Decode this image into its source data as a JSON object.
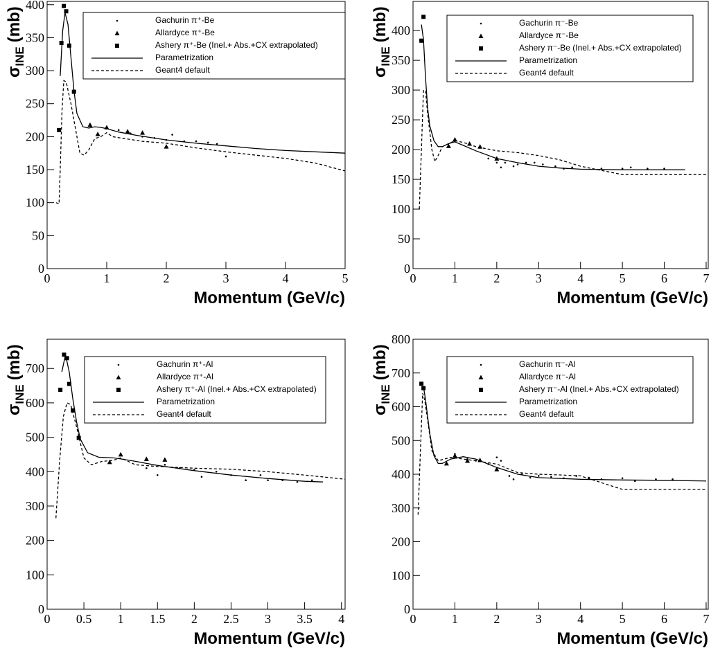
{
  "chart_data": [
    {
      "type": "line",
      "xlabel": "Momentum (GeV/c)",
      "ylabel": {
        "main": "σ",
        "sub": "INE",
        "unit": "(mb)"
      },
      "xlim": [
        0,
        5
      ],
      "ylim": [
        0,
        405
      ],
      "xticks": [
        0,
        1,
        2,
        3,
        4,
        5
      ],
      "yticks": [
        0,
        50,
        100,
        150,
        200,
        250,
        300,
        350,
        400
      ],
      "series": [
        {
          "name": "Gachurin π⁺-Be",
          "color": "#000000",
          "marker": "dot",
          "line": "none",
          "x": [
            1.2,
            1.4,
            1.6,
            1.8,
            2.0,
            2.1,
            2.3,
            2.5,
            2.7,
            2.85,
            3.0
          ],
          "values": [
            210,
            205,
            200,
            198,
            195,
            203,
            193,
            193,
            191,
            189,
            170
          ]
        },
        {
          "name": "Allardyce π⁺-Be",
          "color": "#000000",
          "marker": "triangle",
          "line": "none",
          "x": [
            0.72,
            0.85,
            1.0,
            1.35,
            1.6,
            2.0
          ],
          "values": [
            218,
            204,
            214,
            208,
            206,
            185
          ]
        },
        {
          "name": "Ashery π⁺-Be (Inel.+ Abs.+CX extrapolated)",
          "color": "#000000",
          "marker": "square",
          "line": "none",
          "x": [
            0.2,
            0.24,
            0.28,
            0.32,
            0.37,
            0.45
          ],
          "values": [
            210,
            342,
            398,
            390,
            338,
            268
          ]
        },
        {
          "name": "Parametrization",
          "color": "#000000",
          "marker": "none",
          "line": "solid",
          "x": [
            0.22,
            0.26,
            0.3,
            0.35,
            0.4,
            0.45,
            0.5,
            0.6,
            0.7,
            0.8,
            0.9,
            1.0,
            1.2,
            1.5,
            2,
            2.5,
            3,
            3.5,
            4,
            4.5,
            5
          ],
          "values": [
            292,
            360,
            388,
            370,
            320,
            270,
            235,
            215,
            213,
            215,
            214,
            212,
            207,
            202,
            195,
            190,
            186,
            182,
            179,
            177,
            175
          ]
        },
        {
          "name": "Geant4 default",
          "color": "#000000",
          "marker": "none",
          "line": "dashed",
          "x": [
            0.15,
            0.2,
            0.22,
            0.25,
            0.28,
            0.32,
            0.4,
            0.5,
            0.55,
            0.62,
            0.7,
            0.8,
            0.9,
            1.0,
            1.1,
            1.3,
            1.6,
            2,
            2.5,
            3,
            3.5,
            4,
            4.5,
            5
          ],
          "values": [
            100,
            98,
            150,
            240,
            285,
            283,
            250,
            200,
            175,
            172,
            180,
            197,
            200,
            206,
            200,
            197,
            193,
            190,
            183,
            177,
            172,
            167,
            160,
            148
          ]
        }
      ]
    },
    {
      "type": "line",
      "xlabel": "Momentum (GeV/c)",
      "ylabel": {
        "main": "σ",
        "sub": "INE",
        "unit": "(mb)"
      },
      "xlim": [
        0,
        7.05
      ],
      "ylim": [
        0,
        449
      ],
      "xticks": [
        0,
        1,
        2,
        3,
        4,
        5,
        6,
        7
      ],
      "yticks": [
        0,
        50,
        100,
        150,
        200,
        250,
        300,
        350,
        400
      ],
      "series": [
        {
          "name": "Gachurin π⁻-Be",
          "color": "#000000",
          "marker": "dot",
          "line": "none",
          "x": [
            1.8,
            2.0,
            2.1,
            2.2,
            2.4,
            2.5,
            2.7,
            2.9,
            3.1,
            3.4,
            3.6,
            3.8,
            4.5,
            5.0,
            5.2,
            5.6,
            6.0
          ],
          "values": [
            185,
            178,
            170,
            178,
            172,
            175,
            178,
            178,
            175,
            172,
            168,
            170,
            168,
            168,
            170,
            168,
            168
          ]
        },
        {
          "name": "Allardyce π⁻-Be",
          "color": "#000000",
          "marker": "triangle",
          "line": "none",
          "x": [
            0.85,
            1.0,
            1.35,
            1.6,
            2.0
          ],
          "values": [
            206,
            217,
            210,
            205,
            185
          ]
        },
        {
          "name": "Ashery π⁻-Be (Inel.+ Abs.+CX extrapolated)",
          "color": "#000000",
          "marker": "square",
          "line": "none",
          "x": [
            0.2,
            0.25
          ],
          "values": [
            383,
            423
          ]
        },
        {
          "name": "Parametrization",
          "color": "#000000",
          "marker": "none",
          "line": "solid",
          "x": [
            0.2,
            0.25,
            0.3,
            0.35,
            0.4,
            0.5,
            0.6,
            0.7,
            0.85,
            1.0,
            1.2,
            1.5,
            2,
            2.5,
            3,
            3.5,
            4,
            5,
            6,
            6.5
          ],
          "values": [
            410,
            385,
            320,
            270,
            240,
            215,
            205,
            205,
            210,
            213,
            207,
            198,
            185,
            178,
            172,
            169,
            167,
            166,
            166,
            166
          ]
        },
        {
          "name": "Geant4 default",
          "color": "#000000",
          "marker": "none",
          "line": "dashed",
          "x": [
            0.15,
            0.2,
            0.25,
            0.3,
            0.35,
            0.45,
            0.52,
            0.6,
            0.7,
            0.85,
            1.0,
            1.2,
            1.5,
            2,
            2.5,
            3,
            3.5,
            4,
            4.5,
            5,
            6,
            7
          ],
          "values": [
            100,
            200,
            300,
            298,
            260,
            200,
            180,
            190,
            205,
            210,
            215,
            212,
            205,
            198,
            195,
            190,
            183,
            172,
            165,
            158,
            158,
            158
          ]
        }
      ]
    },
    {
      "type": "line",
      "xlabel": "Momentum (GeV/c)",
      "ylabel": {
        "main": "σ",
        "sub": "INE",
        "unit": "(mb)"
      },
      "xlim": [
        0,
        4.05
      ],
      "ylim": [
        0,
        785
      ],
      "xticks": [
        0,
        0.5,
        1,
        1.5,
        2,
        2.5,
        3,
        3.5,
        4
      ],
      "yticks": [
        0,
        100,
        200,
        300,
        400,
        500,
        600,
        700
      ],
      "series": [
        {
          "name": "Gachurin π⁺-Al",
          "color": "#000000",
          "marker": "dot",
          "line": "none",
          "x": [
            1.35,
            1.5,
            1.6,
            1.8,
            2.0,
            2.1,
            2.3,
            2.5,
            2.7,
            2.9,
            3.0,
            3.2,
            3.4,
            3.6
          ],
          "values": [
            410,
            390,
            420,
            410,
            405,
            385,
            400,
            390,
            375,
            390,
            375,
            375,
            370,
            375
          ]
        },
        {
          "name": "Allardyce π⁺-Al",
          "color": "#000000",
          "marker": "triangle",
          "line": "none",
          "x": [
            0.85,
            1.0,
            1.35,
            1.6
          ],
          "values": [
            428,
            450,
            437,
            435
          ]
        },
        {
          "name": "Ashery π⁺-Al (Inel.+ Abs.+CX extrapolated)",
          "color": "#000000",
          "marker": "square",
          "line": "none",
          "x": [
            0.18,
            0.23,
            0.27,
            0.3,
            0.35,
            0.43
          ],
          "values": [
            638,
            740,
            730,
            655,
            578,
            498
          ]
        },
        {
          "name": "Parametrization",
          "color": "#000000",
          "marker": "none",
          "line": "solid",
          "x": [
            0.2,
            0.25,
            0.3,
            0.35,
            0.4,
            0.45,
            0.55,
            0.7,
            0.9,
            1.0,
            1.2,
            1.5,
            2,
            2.5,
            3,
            3.5,
            3.75
          ],
          "values": [
            690,
            740,
            690,
            610,
            545,
            495,
            455,
            442,
            440,
            437,
            430,
            418,
            403,
            390,
            380,
            372,
            370
          ]
        },
        {
          "name": "Geant4 default",
          "color": "#000000",
          "marker": "none",
          "line": "dashed",
          "x": [
            0.12,
            0.17,
            0.22,
            0.27,
            0.32,
            0.4,
            0.5,
            0.6,
            0.75,
            0.9,
            1.0,
            1.2,
            1.5,
            2,
            2.5,
            3,
            3.5,
            4.05
          ],
          "values": [
            265,
            430,
            560,
            600,
            595,
            530,
            440,
            420,
            430,
            433,
            440,
            420,
            415,
            410,
            407,
            400,
            390,
            378
          ]
        }
      ]
    },
    {
      "type": "line",
      "xlabel": "Momentum (GeV/c)",
      "ylabel": {
        "main": "σ",
        "sub": "INE",
        "unit": "(mb)"
      },
      "xlim": [
        0,
        7.05
      ],
      "ylim": [
        0,
        800
      ],
      "xticks": [
        0,
        1,
        2,
        3,
        4,
        5,
        6,
        7
      ],
      "yticks": [
        0,
        100,
        200,
        300,
        400,
        500,
        600,
        700,
        800
      ],
      "series": [
        {
          "name": "Gachurin π⁻-Al",
          "color": "#000000",
          "marker": "dot",
          "line": "none",
          "x": [
            0.8,
            1.0,
            1.3,
            1.5,
            1.8,
            2.0,
            2.1,
            2.3,
            2.4,
            2.6,
            2.8,
            3.0,
            3.3,
            3.6,
            3.9,
            4.2,
            4.5,
            5.0,
            5.3,
            5.8,
            6.2
          ],
          "values": [
            430,
            460,
            445,
            440,
            430,
            450,
            440,
            395,
            385,
            400,
            390,
            395,
            392,
            388,
            395,
            390,
            385,
            388,
            380,
            385,
            385
          ]
        },
        {
          "name": "Allardyce π⁻-Al",
          "color": "#000000",
          "marker": "triangle",
          "line": "none",
          "x": [
            0.8,
            1.0,
            1.3,
            1.6,
            2.0
          ],
          "values": [
            432,
            455,
            440,
            442,
            415
          ]
        },
        {
          "name": "Ashery π⁻-Al (Inel.+ Abs.+CX extrapolated)",
          "color": "#000000",
          "marker": "square",
          "line": "none",
          "x": [
            0.2,
            0.25
          ],
          "values": [
            668,
            655
          ]
        },
        {
          "name": "Parametrization",
          "color": "#000000",
          "marker": "none",
          "line": "solid",
          "x": [
            0.25,
            0.3,
            0.4,
            0.5,
            0.6,
            0.7,
            0.9,
            1.2,
            1.5,
            2,
            2.5,
            3,
            4,
            5,
            6,
            7
          ],
          "values": [
            660,
            620,
            520,
            455,
            432,
            432,
            445,
            452,
            445,
            420,
            400,
            390,
            385,
            383,
            382,
            380
          ]
        },
        {
          "name": "Geant4 default",
          "color": "#000000",
          "marker": "none",
          "line": "dashed",
          "x": [
            0.12,
            0.17,
            0.23,
            0.28,
            0.35,
            0.45,
            0.6,
            0.9,
            1.2,
            1.5,
            2,
            2.5,
            3,
            3.5,
            4,
            4.5,
            5,
            6,
            7
          ],
          "values": [
            280,
            450,
            640,
            620,
            560,
            470,
            440,
            450,
            445,
            440,
            430,
            405,
            400,
            398,
            395,
            375,
            355,
            355,
            355
          ]
        }
      ]
    }
  ]
}
